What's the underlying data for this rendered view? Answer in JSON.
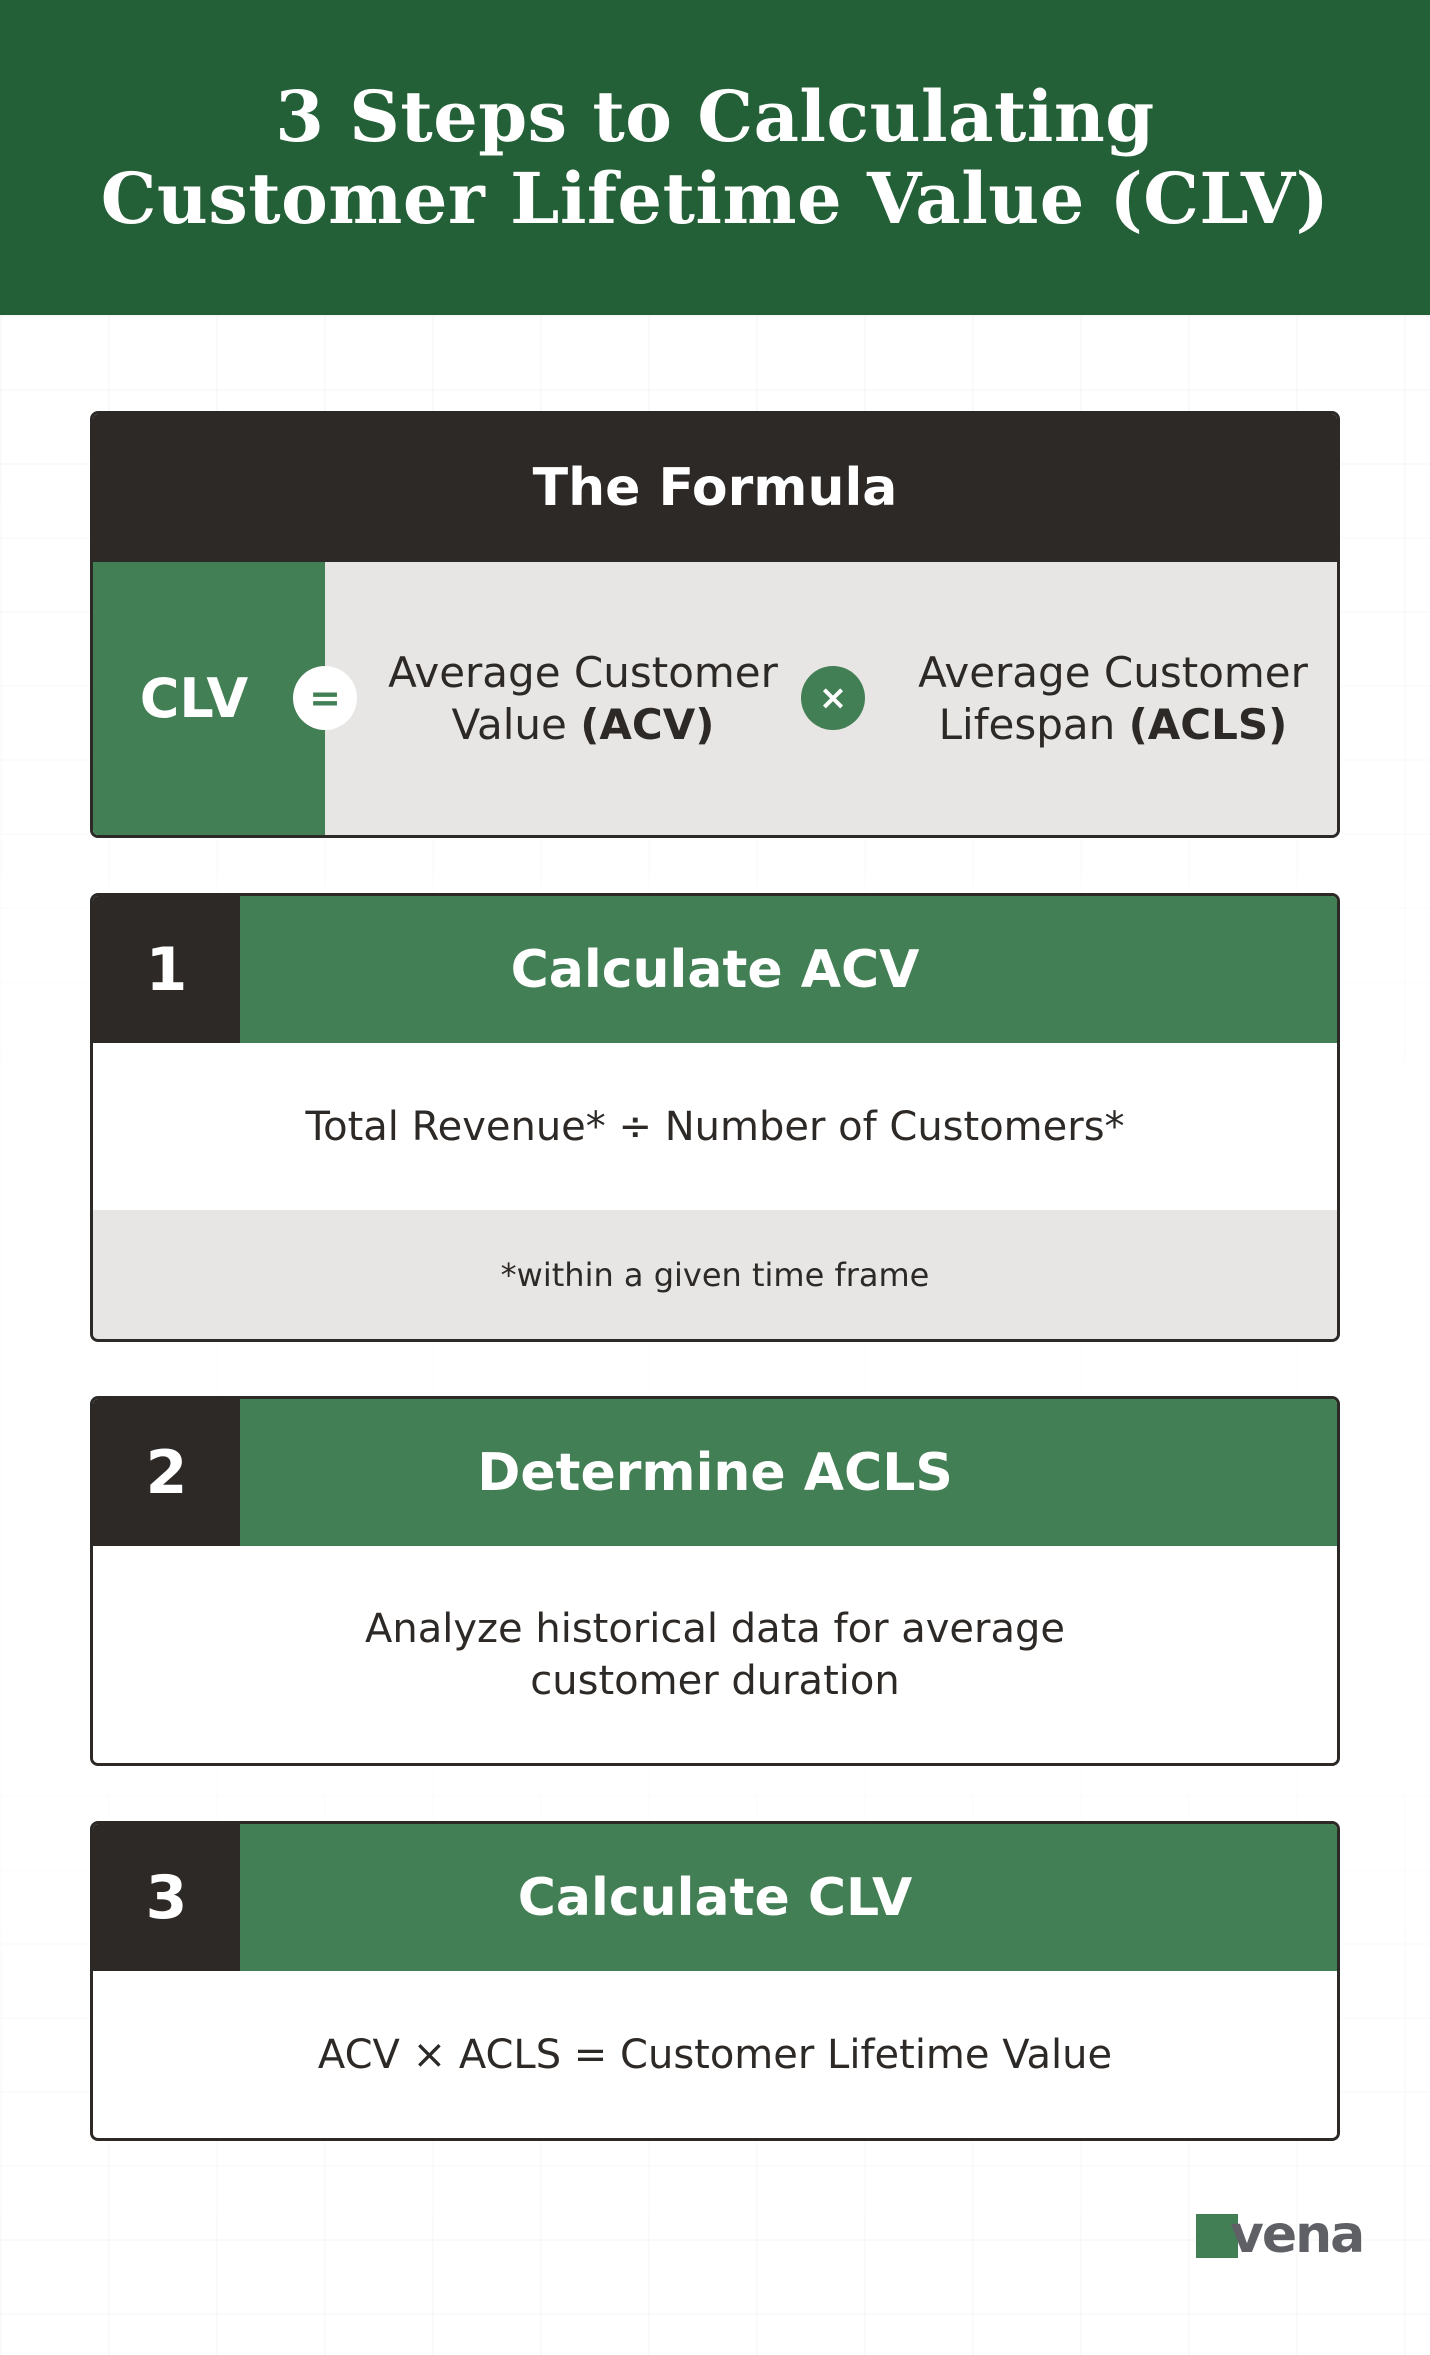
{
  "header": {
    "title_line1": "3 Steps to Calculating",
    "title_line2": "Customer Lifetime Value (CLV)"
  },
  "formula": {
    "heading": "The Formula",
    "clv_label": "CLV",
    "equals_symbol": "=",
    "times_symbol": "×",
    "term1_line1": "Average Customer",
    "term1_line2_prefix": "Value ",
    "term1_line2_bold": "(ACV)",
    "term2_line1": "Average Customer",
    "term2_line2_prefix": "Lifespan ",
    "term2_line2_bold": "(ACLS)"
  },
  "steps": [
    {
      "number": "1",
      "title": "Calculate ACV",
      "body_line1": "Total Revenue* ÷ Number of Customers*",
      "note": "*within a given time frame"
    },
    {
      "number": "2",
      "title": "Determine ACLS",
      "body_line1": "Analyze historical data for average",
      "body_line2": "customer duration"
    },
    {
      "number": "3",
      "title": "Calculate CLV",
      "body_line1": "ACV × ACLS = Customer Lifetime Value"
    }
  ],
  "logo": {
    "text": "vena"
  },
  "colors": {
    "header_green": "#235f37",
    "accent_green": "#437f55",
    "dark": "#2d2926",
    "light_gray": "#e7e6e4"
  }
}
